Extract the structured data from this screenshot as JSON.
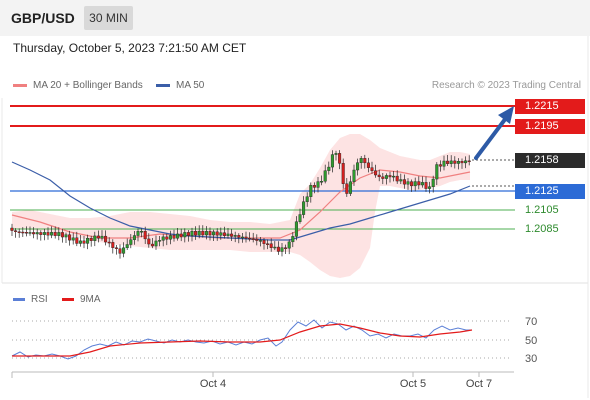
{
  "header": {
    "pair": "GBP/USD",
    "timeframe": "30 MIN",
    "datetime": "Thursday, October 5, 2023 7:21:50 AM CET"
  },
  "legend": {
    "ma20": "MA 20 + Bollinger Bands",
    "ma50": "MA 50",
    "attribution": "Research © 2023 Trading Central"
  },
  "price_levels": [
    {
      "label": "1.2215",
      "style": "red-box"
    },
    {
      "label": "1.2195",
      "style": "red-box"
    },
    {
      "label": "1.2158",
      "style": "current"
    },
    {
      "label": "1.2125",
      "style": "blue-box"
    },
    {
      "label": "1.2105",
      "style": "green-text"
    },
    {
      "label": "1.2085",
      "style": "green-text"
    }
  ],
  "rsi": {
    "legend_rsi": "RSI",
    "legend_ma": "9MA",
    "levels": [
      "70",
      "50",
      "30"
    ]
  },
  "x_axis": [
    "Oct 4",
    "Oct 5",
    "Oct 7"
  ],
  "colors": {
    "resistance": "#e31b1b",
    "pivot": "#2c6bd6",
    "support": "#4caf50",
    "ma20": "#f08080",
    "ma50": "#3b5ea8",
    "bollinger": "#fde0e0",
    "candle_up": "#2e9b2e",
    "candle_down": "#d62020",
    "rsi": "#5b7fd6",
    "rsi_ma": "#e31b1b"
  },
  "icons": {
    "forecast_arrow": "arrow-up-right-icon"
  }
}
